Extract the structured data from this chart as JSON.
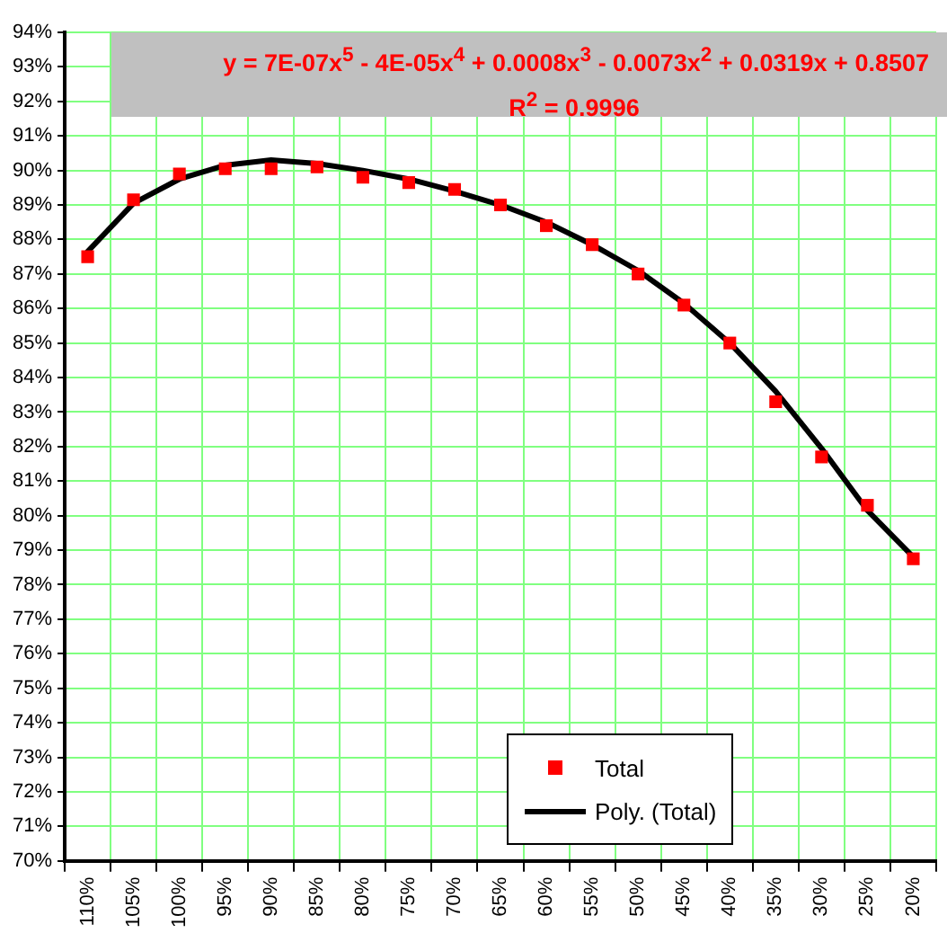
{
  "chart_data": {
    "type": "line",
    "annotations": [
      "y = 7E-07x$^{5}$ - 4E-05x$^{4}$ + 0.0008x$^{3}$ - 0.0073x$^{2}$ + 0.0319x + 0.8507",
      "R$^{2}$ = 0.9996"
    ],
    "categories": [
      "110%",
      "105%",
      "100%",
      "95%",
      "90%",
      "85%",
      "80%",
      "75%",
      "70%",
      "65%",
      "60%",
      "55%",
      "50%",
      "45%",
      "40%",
      "35%",
      "30%",
      "25%",
      "20%"
    ],
    "series": [
      {
        "name": "Total",
        "type": "scatter",
        "marker": "square",
        "color": "#ff0000",
        "values": [
          87.5,
          89.15,
          89.9,
          90.05,
          90.05,
          90.1,
          89.8,
          89.65,
          89.45,
          89.0,
          88.4,
          87.85,
          87.0,
          86.1,
          85.0,
          83.3,
          81.7,
          80.3,
          78.75
        ]
      },
      {
        "name": "Poly. (Total)",
        "type": "line",
        "marker": "none",
        "line_style": "solid",
        "color": "#000000",
        "values": [
          87.65,
          89.05,
          89.75,
          90.15,
          90.3,
          90.2,
          90.0,
          89.75,
          89.4,
          89.0,
          88.5,
          87.85,
          87.1,
          86.15,
          85.0,
          83.6,
          81.95,
          80.15,
          78.8
        ]
      }
    ],
    "ylim": [
      70,
      94
    ],
    "yticks": [
      {
        "value": 70,
        "label": "70%"
      },
      {
        "value": 71,
        "label": "71%"
      },
      {
        "value": 72,
        "label": "72%"
      },
      {
        "value": 73,
        "label": "73%"
      },
      {
        "value": 74,
        "label": "74%"
      },
      {
        "value": 75,
        "label": "75%"
      },
      {
        "value": 76,
        "label": "76%"
      },
      {
        "value": 77,
        "label": "77%"
      },
      {
        "value": 78,
        "label": "78%"
      },
      {
        "value": 79,
        "label": "79%"
      },
      {
        "value": 80,
        "label": "80%"
      },
      {
        "value": 81,
        "label": "81%"
      },
      {
        "value": 82,
        "label": "82%"
      },
      {
        "value": 83,
        "label": "83%"
      },
      {
        "value": 84,
        "label": "84%"
      },
      {
        "value": 85,
        "label": "85%"
      },
      {
        "value": 86,
        "label": "86%"
      },
      {
        "value": 87,
        "label": "87%"
      },
      {
        "value": 88,
        "label": "88%"
      },
      {
        "value": 89,
        "label": "89%"
      },
      {
        "value": 90,
        "label": "90%"
      },
      {
        "value": 91,
        "label": "91%"
      },
      {
        "value": 92,
        "label": "92%"
      },
      {
        "value": 93,
        "label": "93%"
      },
      {
        "value": 94,
        "label": "94%"
      }
    ],
    "grid": true,
    "legend": "bottom"
  }
}
